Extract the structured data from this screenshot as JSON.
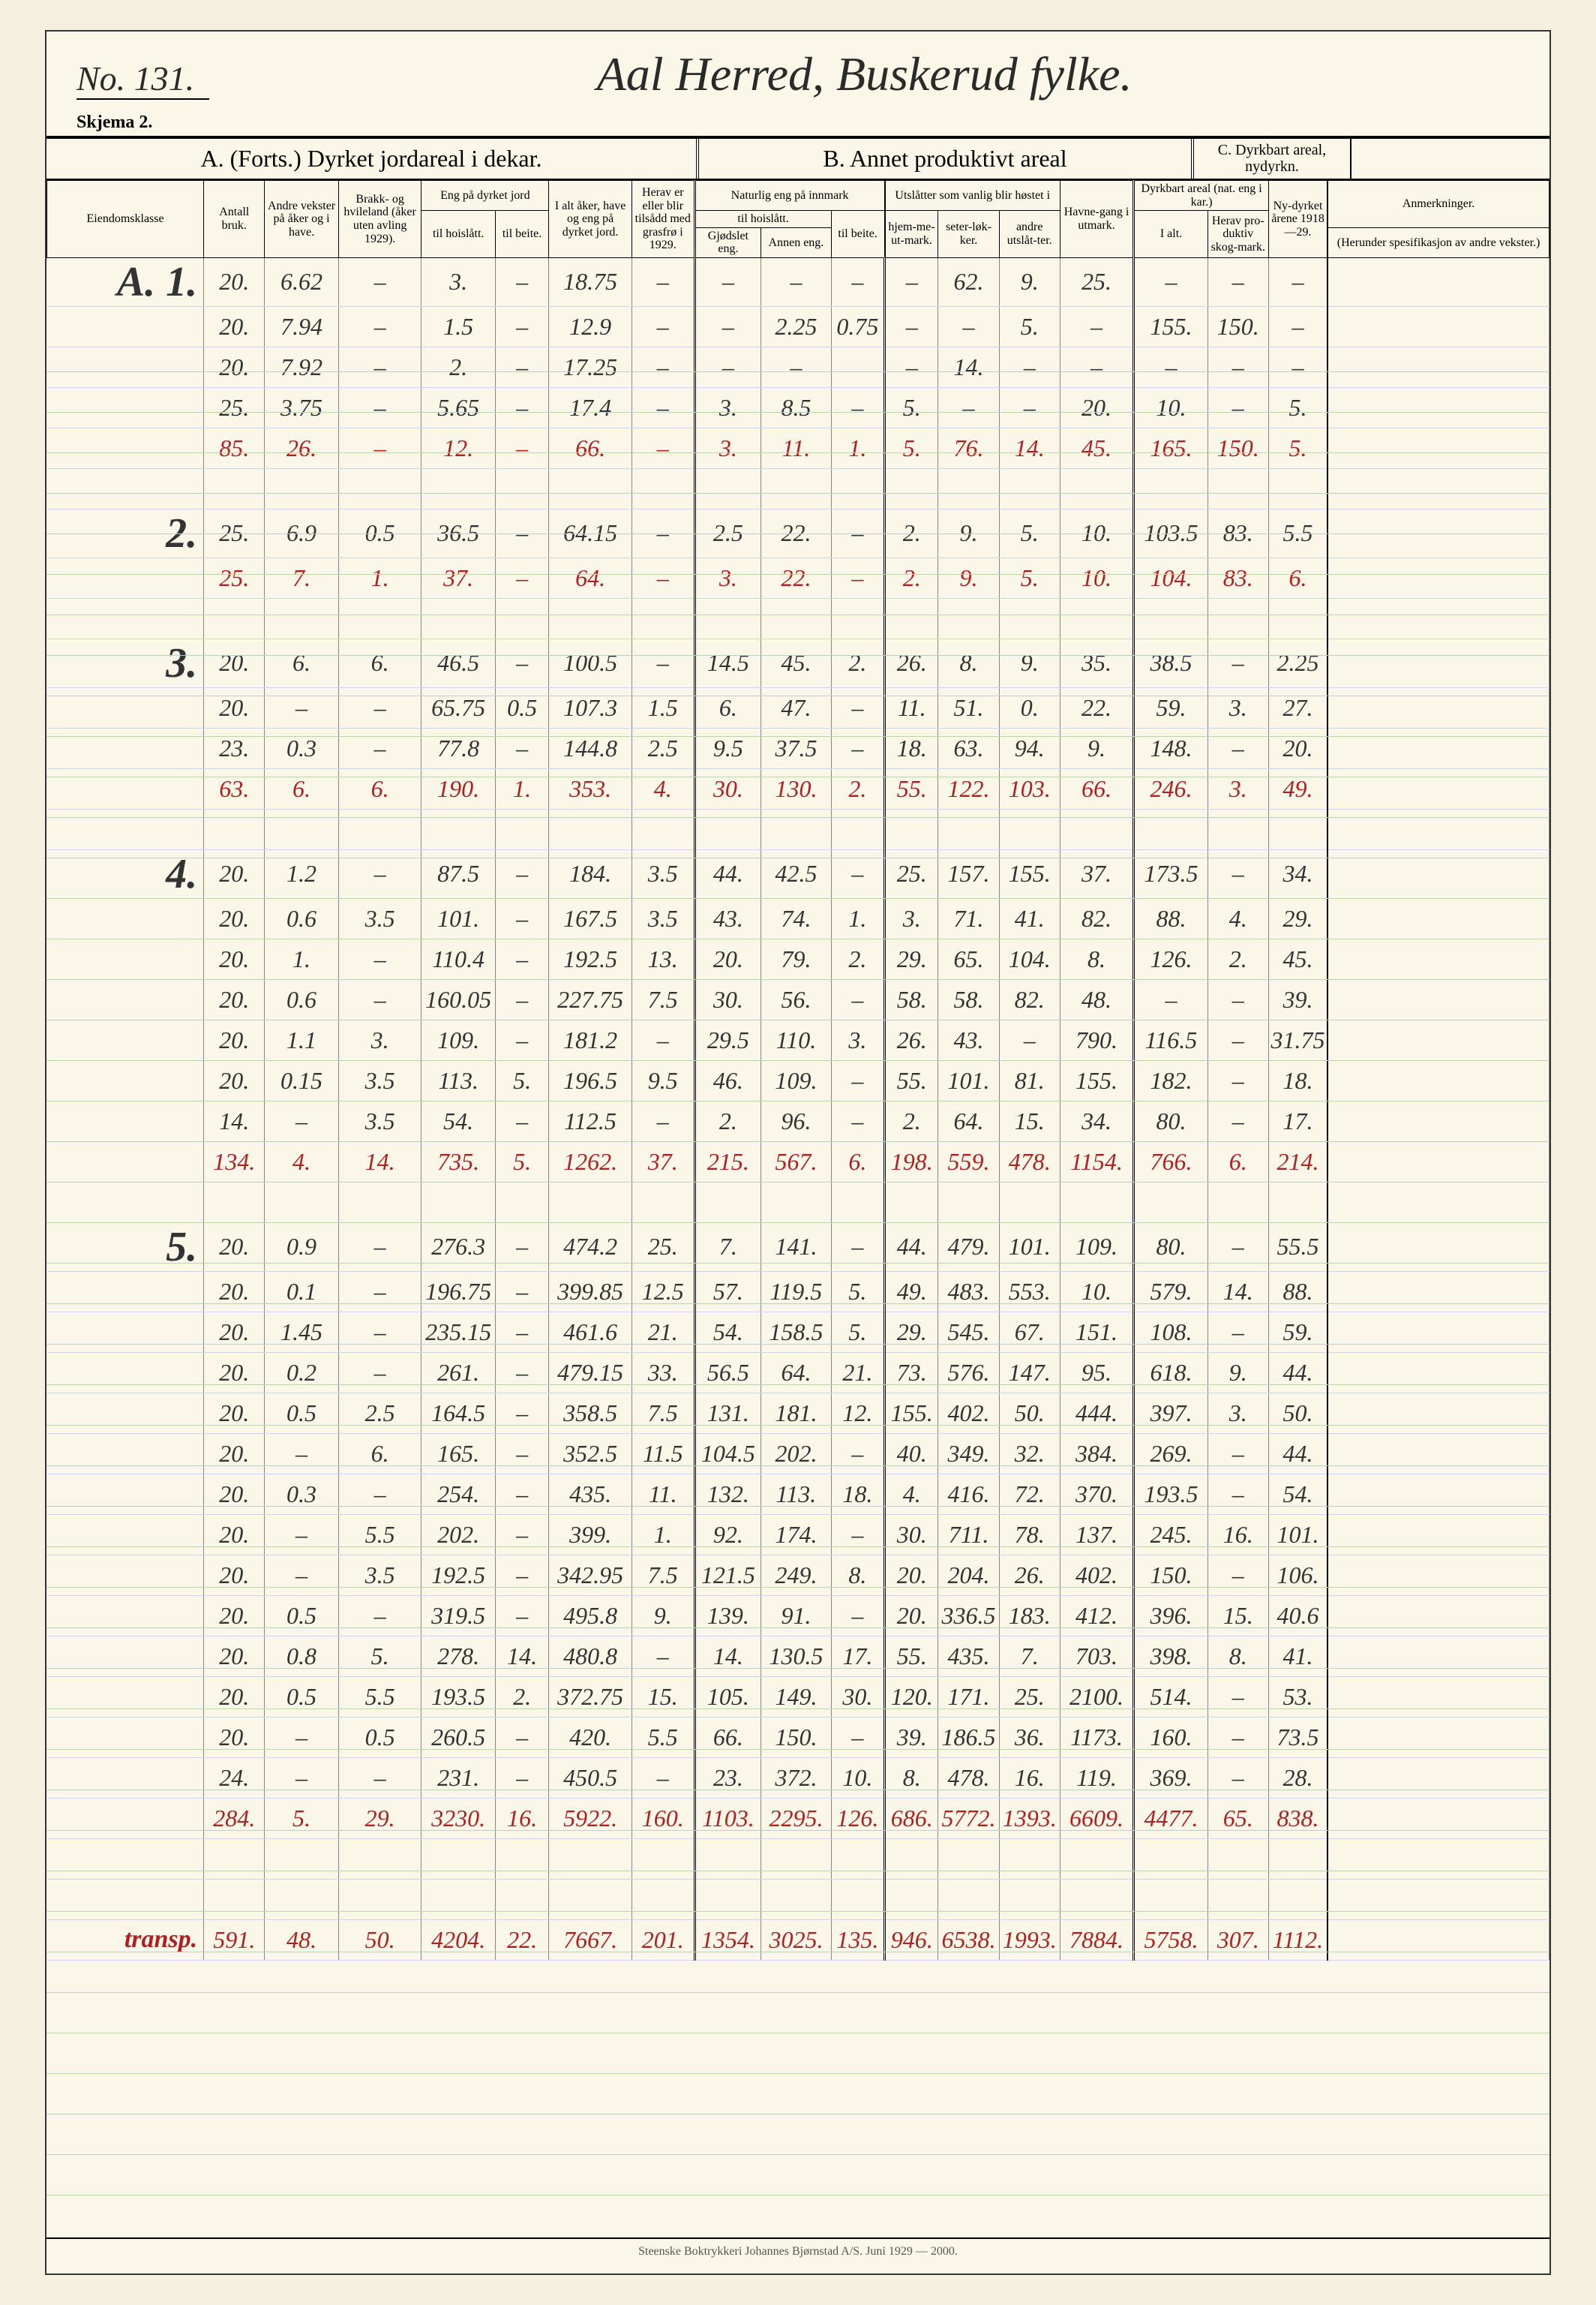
{
  "form_no": "No. 131.",
  "title": "Aal Herred, Buskerud fylke.",
  "skjema": "Skjema 2.",
  "sections": {
    "a": "A. (Forts.)   Dyrket jordareal i dekar.",
    "b": "B.   Annet produktivt areal",
    "c": "C. Dyrkbart areal, nydyrkn."
  },
  "col_headers": {
    "eiendom": "Eiendomsklasse",
    "antall": "Antall bruk.",
    "andre": "Andre vekster på åker og i have.",
    "brakk": "Brakk- og hvileland (åker uten avling 1929).",
    "eng_group": "Eng på dyrket jord",
    "eng_hoi": "til hoislått.",
    "eng_beite": "til beite.",
    "ialt": "I alt åker, have og eng på dyrket jord.",
    "herav": "Herav er eller blir tilsådd med grasfrø i 1929.",
    "naturlig_group": "Naturlig eng på innmark",
    "nat_hoi": "til hoislått.",
    "gjodslet": "Gjødslet eng.",
    "annen": "Annen eng.",
    "nat_beite": "til beite.",
    "utslatt_group": "Utslåtter som vanlig blir høstet i",
    "hjemme": "hjem-me-ut-mark.",
    "seter": "seter-løk-ker.",
    "andre_ut": "andre utslåt-ter.",
    "havne": "Havne-gang i utmark.",
    "dyrkbart_group": "Dyrkbart areal (nat. eng i kar.)",
    "d_ialt": "I alt.",
    "d_herav": "Herav pro-duktiv skog-mark.",
    "nydyrket": "Ny-dyrket årene 1918—29.",
    "anmerk": "Anmerkninger.",
    "anmerk_sub": "(Herunder spesifikasjon av andre vekster.)"
  },
  "widths": {
    "klass": 170,
    "antall": 66,
    "andre": 80,
    "brakk": 90,
    "eng_hoi": 80,
    "eng_beite": 58,
    "ialt": 90,
    "herav": 68,
    "gjodslet": 72,
    "annen": 76,
    "nat_beite": 58,
    "hjemme": 58,
    "seter": 66,
    "andre_ut": 66,
    "havne": 80,
    "d_ialt": 80,
    "d_herav": 66,
    "nydyrket": 64,
    "anmerk": 240
  },
  "groups": [
    {
      "klass": "A. 1.",
      "rows": [
        [
          "20.",
          "6.62",
          "–",
          "3.",
          "–",
          "18.75",
          "–",
          "–",
          "–",
          "–",
          "–",
          "62.",
          "9.",
          "25.",
          "–",
          "–",
          "–",
          ""
        ],
        [
          "20.",
          "7.94",
          "–",
          "1.5",
          "–",
          "12.9",
          "–",
          "–",
          "2.25",
          "0.75",
          "–",
          "–",
          "5.",
          "–",
          "155.",
          "150.",
          "–",
          ""
        ],
        [
          "20.",
          "7.92",
          "–",
          "2.",
          "–",
          "17.25",
          "–",
          "–",
          "–",
          "",
          "–",
          "14.",
          "–",
          "–",
          "–",
          "–",
          "–",
          ""
        ],
        [
          "25.",
          "3.75",
          "–",
          "5.65",
          "–",
          "17.4",
          "–",
          "3.",
          "8.5",
          "–",
          "5.",
          "–",
          "–",
          "20.",
          "10.",
          "–",
          "5.",
          ""
        ]
      ],
      "sum": [
        "85.",
        "26.",
        "–",
        "12.",
        "–",
        "66.",
        "–",
        "3.",
        "11.",
        "1.",
        "5.",
        "76.",
        "14.",
        "45.",
        "165.",
        "150.",
        "5.",
        ""
      ]
    },
    {
      "klass": "2.",
      "rows": [
        [
          "25.",
          "6.9",
          "0.5",
          "36.5",
          "–",
          "64.15",
          "–",
          "2.5",
          "22.",
          "–",
          "2.",
          "9.",
          "5.",
          "10.",
          "103.5",
          "83.",
          "5.5",
          ""
        ]
      ],
      "sum": [
        "25.",
        "7.",
        "1.",
        "37.",
        "–",
        "64.",
        "–",
        "3.",
        "22.",
        "–",
        "2.",
        "9.",
        "5.",
        "10.",
        "104.",
        "83.",
        "6.",
        ""
      ]
    },
    {
      "klass": "3.",
      "rows": [
        [
          "20.",
          "6.",
          "6.",
          "46.5",
          "–",
          "100.5",
          "–",
          "14.5",
          "45.",
          "2.",
          "26.",
          "8.",
          "9.",
          "35.",
          "38.5",
          "–",
          "2.25",
          ""
        ],
        [
          "20.",
          "–",
          "–",
          "65.75",
          "0.5",
          "107.3",
          "1.5",
          "6.",
          "47.",
          "–",
          "11.",
          "51.",
          "0.",
          "22.",
          "59.",
          "3.",
          "27.",
          ""
        ],
        [
          "23.",
          "0.3",
          "–",
          "77.8",
          "–",
          "144.8",
          "2.5",
          "9.5",
          "37.5",
          "–",
          "18.",
          "63.",
          "94.",
          "9.",
          "148.",
          "–",
          "20.",
          ""
        ]
      ],
      "sum": [
        "63.",
        "6.",
        "6.",
        "190.",
        "1.",
        "353.",
        "4.",
        "30.",
        "130.",
        "2.",
        "55.",
        "122.",
        "103.",
        "66.",
        "246.",
        "3.",
        "49.",
        ""
      ]
    },
    {
      "klass": "4.",
      "rows": [
        [
          "20.",
          "1.2",
          "–",
          "87.5",
          "–",
          "184.",
          "3.5",
          "44.",
          "42.5",
          "–",
          "25.",
          "157.",
          "155.",
          "37.",
          "173.5",
          "–",
          "34.",
          ""
        ],
        [
          "20.",
          "0.6",
          "3.5",
          "101.",
          "–",
          "167.5",
          "3.5",
          "43.",
          "74.",
          "1.",
          "3.",
          "71.",
          "41.",
          "82.",
          "88.",
          "4.",
          "29.",
          ""
        ],
        [
          "20.",
          "1.",
          "–",
          "110.4",
          "–",
          "192.5",
          "13.",
          "20.",
          "79.",
          "2.",
          "29.",
          "65.",
          "104.",
          "8.",
          "126.",
          "2.",
          "45.",
          ""
        ],
        [
          "20.",
          "0.6",
          "–",
          "160.05",
          "–",
          "227.75",
          "7.5",
          "30.",
          "56.",
          "–",
          "58.",
          "58.",
          "82.",
          "48.",
          "–",
          "–",
          "39.",
          ""
        ],
        [
          "20.",
          "1.1",
          "3.",
          "109.",
          "–",
          "181.2",
          "–",
          "29.5",
          "110.",
          "3.",
          "26.",
          "43.",
          "–",
          "790.",
          "116.5",
          "–",
          "31.75",
          ""
        ],
        [
          "20.",
          "0.15",
          "3.5",
          "113.",
          "5.",
          "196.5",
          "9.5",
          "46.",
          "109.",
          "–",
          "55.",
          "101.",
          "81.",
          "155.",
          "182.",
          "–",
          "18.",
          ""
        ],
        [
          "14.",
          "–",
          "3.5",
          "54.",
          "–",
          "112.5",
          "–",
          "2.",
          "96.",
          "–",
          "2.",
          "64.",
          "15.",
          "34.",
          "80.",
          "–",
          "17.",
          ""
        ]
      ],
      "sum": [
        "134.",
        "4.",
        "14.",
        "735.",
        "5.",
        "1262.",
        "37.",
        "215.",
        "567.",
        "6.",
        "198.",
        "559.",
        "478.",
        "1154.",
        "766.",
        "6.",
        "214.",
        ""
      ]
    },
    {
      "klass": "5.",
      "rows": [
        [
          "20.",
          "0.9",
          "–",
          "276.3",
          "–",
          "474.2",
          "25.",
          "7.",
          "141.",
          "–",
          "44.",
          "479.",
          "101.",
          "109.",
          "80.",
          "–",
          "55.5",
          ""
        ],
        [
          "20.",
          "0.1",
          "–",
          "196.75",
          "–",
          "399.85",
          "12.5",
          "57.",
          "119.5",
          "5.",
          "49.",
          "483.",
          "553.",
          "10.",
          "579.",
          "14.",
          "88.",
          ""
        ],
        [
          "20.",
          "1.45",
          "–",
          "235.15",
          "–",
          "461.6",
          "21.",
          "54.",
          "158.5",
          "5.",
          "29.",
          "545.",
          "67.",
          "151.",
          "108.",
          "–",
          "59.",
          ""
        ],
        [
          "20.",
          "0.2",
          "–",
          "261.",
          "–",
          "479.15",
          "33.",
          "56.5",
          "64.",
          "21.",
          "73.",
          "576.",
          "147.",
          "95.",
          "618.",
          "9.",
          "44.",
          ""
        ],
        [
          "20.",
          "0.5",
          "2.5",
          "164.5",
          "–",
          "358.5",
          "7.5",
          "131.",
          "181.",
          "12.",
          "155.",
          "402.",
          "50.",
          "444.",
          "397.",
          "3.",
          "50.",
          ""
        ],
        [
          "20.",
          "–",
          "6.",
          "165.",
          "–",
          "352.5",
          "11.5",
          "104.5",
          "202.",
          "–",
          "40.",
          "349.",
          "32.",
          "384.",
          "269.",
          "–",
          "44.",
          ""
        ],
        [
          "20.",
          "0.3",
          "–",
          "254.",
          "–",
          "435.",
          "11.",
          "132.",
          "113.",
          "18.",
          "4.",
          "416.",
          "72.",
          "370.",
          "193.5",
          "–",
          "54.",
          ""
        ],
        [
          "20.",
          "–",
          "5.5",
          "202.",
          "–",
          "399.",
          "1.",
          "92.",
          "174.",
          "–",
          "30.",
          "711.",
          "78.",
          "137.",
          "245.",
          "16.",
          "101.",
          ""
        ],
        [
          "20.",
          "–",
          "3.5",
          "192.5",
          "–",
          "342.95",
          "7.5",
          "121.5",
          "249.",
          "8.",
          "20.",
          "204.",
          "26.",
          "402.",
          "150.",
          "–",
          "106.",
          ""
        ],
        [
          "20.",
          "0.5",
          "–",
          "319.5",
          "–",
          "495.8",
          "9.",
          "139.",
          "91.",
          "–",
          "20.",
          "336.5",
          "183.",
          "412.",
          "396.",
          "15.",
          "40.6",
          ""
        ],
        [
          "20.",
          "0.8",
          "5.",
          "278.",
          "14.",
          "480.8",
          "–",
          "14.",
          "130.5",
          "17.",
          "55.",
          "435.",
          "7.",
          "703.",
          "398.",
          "8.",
          "41.",
          ""
        ],
        [
          "20.",
          "0.5",
          "5.5",
          "193.5",
          "2.",
          "372.75",
          "15.",
          "105.",
          "149.",
          "30.",
          "120.",
          "171.",
          "25.",
          "2100.",
          "514.",
          "–",
          "53.",
          ""
        ],
        [
          "20.",
          "–",
          "0.5",
          "260.5",
          "–",
          "420.",
          "5.5",
          "66.",
          "150.",
          "–",
          "39.",
          "186.5",
          "36.",
          "1173.",
          "160.",
          "–",
          "73.5",
          ""
        ],
        [
          "24.",
          "–",
          "–",
          "231.",
          "–",
          "450.5",
          "–",
          "23.",
          "372.",
          "10.",
          "8.",
          "478.",
          "16.",
          "119.",
          "369.",
          "–",
          "28.",
          ""
        ]
      ],
      "sum": [
        "284.",
        "5.",
        "29.",
        "3230.",
        "16.",
        "5922.",
        "160.",
        "1103.",
        "2295.",
        "126.",
        "686.",
        "5772.",
        "1393.",
        "6609.",
        "4477.",
        "65.",
        "838.",
        ""
      ]
    }
  ],
  "transp_label": "transp.",
  "transp": [
    "591.",
    "48.",
    "50.",
    "4204.",
    "22.",
    "7667.",
    "201.",
    "1354.",
    "3025.",
    "135.",
    "946.",
    "6538.",
    "1993.",
    "7884.",
    "5758.",
    "307.",
    "1112.",
    ""
  ],
  "footer": "Steenske Boktrykkeri Johannes Bjørnstad A/S.  Juni 1929 — 2000."
}
